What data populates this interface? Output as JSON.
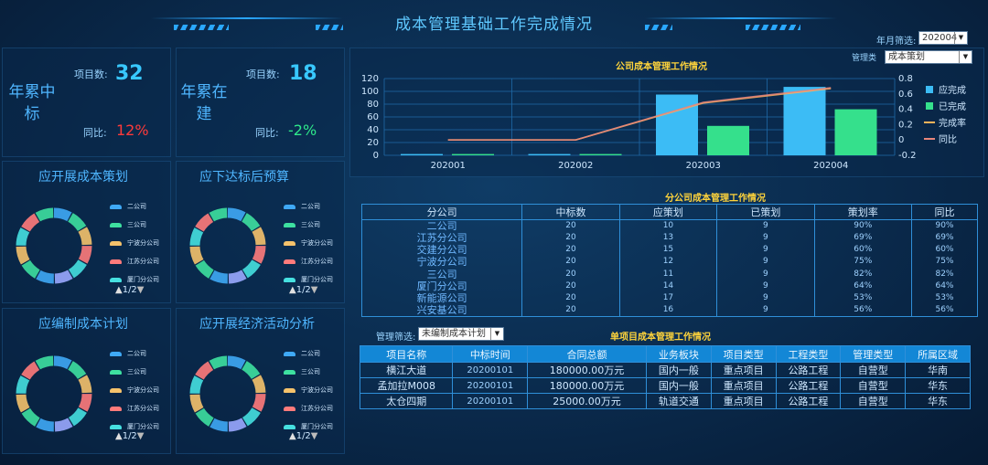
{
  "header": {
    "title": "成本管理基础工作完成情况"
  },
  "year_filter": {
    "label": "年月筛选:",
    "value": "202004"
  },
  "kpis": [
    {
      "title": "年累中标",
      "count_label": "项目数:",
      "count": "32",
      "yoy_label": "同比:",
      "yoy": "12%"
    },
    {
      "title": "年累在建",
      "count_label": "项目数:",
      "count": "18",
      "yoy_label": "同比:",
      "yoy": "-2%"
    }
  ],
  "donuts": [
    {
      "title": "应开展成本策划",
      "pager": "1/2"
    },
    {
      "title": "应下达标后预算",
      "pager": "1/2"
    },
    {
      "title": "应编制成本计划",
      "pager": "1/2"
    },
    {
      "title": "应开展经济活动分析",
      "pager": "1/2"
    }
  ],
  "donut_legend": [
    "二公司",
    "三公司",
    "宁波分公司",
    "江苏分公司",
    "厦门分公司"
  ],
  "donut_colors": [
    "#3fa9f5",
    "#3ee0a0",
    "#f5c26b",
    "#ff7b7b",
    "#46e0e0"
  ],
  "company_chart": {
    "title": "公司成本管理工作情况",
    "filter_label": "管理类",
    "filter_value": "成本策划",
    "legend": [
      "应完成",
      "已完成",
      "完成率",
      "同比"
    ]
  },
  "chart_data": {
    "type": "bar",
    "categories": [
      "202001",
      "202002",
      "202003",
      "202004"
    ],
    "series": [
      {
        "name": "应完成",
        "values": [
          2,
          2,
          95,
          107
        ]
      },
      {
        "name": "已完成",
        "values": [
          2,
          2,
          46,
          72
        ]
      },
      {
        "name": "完成率",
        "values": [
          0,
          0,
          0.48,
          0.67
        ]
      },
      {
        "name": "同比",
        "values": [
          0,
          0,
          0.49,
          0.68
        ]
      }
    ],
    "ylim": [
      0,
      120
    ],
    "y2lim": [
      -0.2,
      0.8
    ],
    "yticks": [
      "120",
      "100",
      "80",
      "60",
      "40",
      "20",
      "0"
    ],
    "y2ticks": [
      "0.8",
      "0.6",
      "0.4",
      "0.2",
      "0",
      "-0.2"
    ],
    "colors": {
      "应完成": "#3cbcf5",
      "已完成": "#35e08c",
      "完成率": "#ffb35a",
      "同比": "#e9867b"
    }
  },
  "branch_table": {
    "title": "分公司成本管理工作情况",
    "headers": [
      "分公司",
      "中标数",
      "应策划",
      "已策划",
      "策划率",
      "同比"
    ],
    "rows": [
      [
        "二公司",
        "20",
        "10",
        "9",
        "90%",
        "90%"
      ],
      [
        "江苏分公司",
        "20",
        "13",
        "9",
        "69%",
        "69%"
      ],
      [
        "交建分公司",
        "20",
        "15",
        "9",
        "60%",
        "60%"
      ],
      [
        "宁波分公司",
        "20",
        "12",
        "9",
        "75%",
        "75%"
      ],
      [
        "三公司",
        "20",
        "11",
        "9",
        "82%",
        "82%"
      ],
      [
        "厦门分公司",
        "20",
        "14",
        "9",
        "64%",
        "64%"
      ],
      [
        "新能源公司",
        "20",
        "17",
        "9",
        "53%",
        "53%"
      ],
      [
        "兴安基公司",
        "20",
        "16",
        "9",
        "56%",
        "56%"
      ]
    ]
  },
  "project_table": {
    "filter_label": "管理筛选:",
    "filter_value": "未编制成本计划",
    "title": "单项目成本管理工作情况",
    "headers": [
      "项目名称",
      "中标时间",
      "合同总额",
      "业务板块",
      "项目类型",
      "工程类型",
      "管理类型",
      "所属区域"
    ],
    "rows": [
      [
        "横江大道",
        "20200101",
        "180000.00万元",
        "国内一般",
        "重点项目",
        "公路工程",
        "自营型",
        "华南"
      ],
      [
        "孟加拉M008",
        "20200101",
        "180000.00万元",
        "国内一般",
        "重点项目",
        "公路工程",
        "自营型",
        "华东"
      ],
      [
        "太仓四期",
        "20200101",
        "25000.00万元",
        "轨道交通",
        "重点项目",
        "公路工程",
        "自营型",
        "华东"
      ]
    ]
  }
}
